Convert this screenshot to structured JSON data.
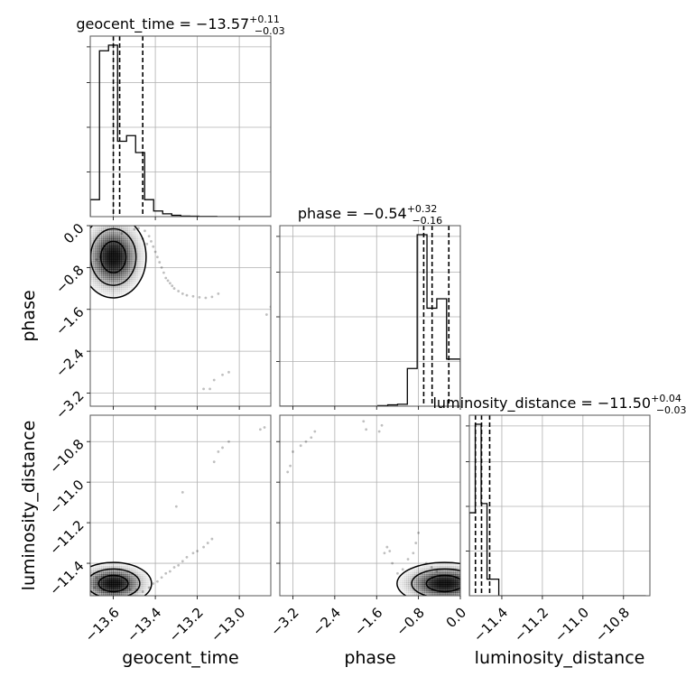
{
  "chart_data": {
    "type": "corner",
    "parameters": [
      "geocent_time",
      "phase",
      "luminosity_distance"
    ],
    "titles": [
      {
        "name": "geocent_time = −13.57",
        "sup": "+0.11",
        "sub": "−0.03"
      },
      {
        "name": "phase = −0.54",
        "sup": "+0.32",
        "sub": "−0.16"
      },
      {
        "name": "luminosity_distance = −11.50",
        "sup": "+0.04",
        "sub": "−0.03"
      }
    ],
    "axis_labels": {
      "x": [
        "geocent_time",
        "phase",
        "luminosity_distance"
      ],
      "y": [
        "",
        "phase",
        "luminosity_distance"
      ]
    },
    "ranges": {
      "geocent_time": [
        -13.71,
        -12.85
      ],
      "phase": [
        -3.45,
        0.0
      ],
      "luminosity_distance": [
        -11.56,
        -10.67
      ]
    },
    "ticks": {
      "geocent_time": [
        "−13.6",
        "−13.4",
        "−13.2",
        "−13.0"
      ],
      "phase": [
        "−3.2",
        "−2.4",
        "−1.6",
        "−0.8",
        "0.0"
      ],
      "luminosity_distance": [
        "−11.4",
        "−11.2",
        "−11.0",
        "−10.8"
      ]
    },
    "tick_values": {
      "geocent_time": [
        -13.6,
        -13.4,
        -13.2,
        -13.0
      ],
      "phase": [
        -3.2,
        -2.4,
        -1.6,
        -0.8,
        0.0
      ],
      "luminosity_distance": [
        -11.4,
        -11.2,
        -11.0,
        -10.8
      ]
    },
    "grid": true,
    "histograms": {
      "geocent_time": {
        "edges": [
          -13.71,
          -13.666,
          -13.623,
          -13.58,
          -13.537,
          -13.494,
          -13.451,
          -13.408,
          -13.365,
          -13.322,
          -13.279,
          -13.236,
          -13.193,
          -13.15,
          -13.107,
          -13.064,
          -13.021,
          -12.978,
          -12.935,
          -12.892,
          -12.85
        ],
        "counts": [
          0.09,
          0.88,
          0.91,
          0.4,
          0.43,
          0.34,
          0.09,
          0.03,
          0.015,
          0.007,
          0.003,
          0.002,
          0.001,
          0.001,
          0,
          0,
          0,
          0,
          0,
          0
        ],
        "quantiles": [
          -13.6,
          -13.57,
          -13.46
        ]
      },
      "phase": {
        "edges": [
          -3.45,
          -3.2625,
          -3.075,
          -2.8875,
          -2.7,
          -2.5125,
          -2.325,
          -2.1375,
          -1.95,
          -1.7625,
          -1.575,
          -1.3875,
          -1.2,
          -1.0125,
          -0.825,
          -0.6375,
          -0.45,
          -0.2625,
          -0.075,
          0.0
        ],
        "counts": [
          0,
          0,
          0,
          0,
          0,
          0,
          0,
          0,
          0,
          0,
          0.003,
          0.007,
          0.01,
          0.2,
          0.91,
          0.52,
          0.57,
          0.25,
          0.25
        ],
        "quantiles": [
          -0.7,
          -0.54,
          -0.22
        ]
      },
      "luminosity_distance": {
        "edges": [
          -11.56,
          -11.531,
          -11.502,
          -11.473,
          -11.444,
          -11.415,
          -11.386,
          -11.357,
          -11.328,
          -11.299,
          -11.27,
          -11.241,
          -11.212,
          -11.183,
          -11.154,
          -11.125,
          -11.096,
          -11.067,
          -11.038,
          -11.009,
          -10.98,
          -10.951,
          -10.922,
          -10.893,
          -10.864,
          -10.835,
          -10.806,
          -10.777,
          -10.748,
          -10.719,
          -10.69
        ],
        "counts": [
          0.45,
          0.93,
          0.5,
          0.09,
          0.09,
          0,
          0,
          0,
          0,
          0,
          0,
          0,
          0,
          0,
          0,
          0,
          0,
          0,
          0,
          0,
          0,
          0,
          0,
          0,
          0,
          0,
          0,
          0,
          0,
          0
        ],
        "quantiles": [
          -11.53,
          -11.5,
          -11.46
        ]
      }
    },
    "scatter": {
      "geocent_time_vs_phase": [
        [
          -13.48,
          -0.05
        ],
        [
          -13.45,
          -0.1
        ],
        [
          -13.43,
          -0.2
        ],
        [
          -13.42,
          -0.3
        ],
        [
          -13.41,
          -0.4
        ],
        [
          -13.4,
          -0.5
        ],
        [
          -13.39,
          -0.6
        ],
        [
          -13.38,
          -0.7
        ],
        [
          -13.37,
          -0.8
        ],
        [
          -13.36,
          -0.9
        ],
        [
          -13.35,
          -1.0
        ],
        [
          -13.34,
          -1.05
        ],
        [
          -13.33,
          -1.1
        ],
        [
          -13.32,
          -1.15
        ],
        [
          -13.31,
          -1.2
        ],
        [
          -13.29,
          -1.25
        ],
        [
          -13.27,
          -1.3
        ],
        [
          -13.25,
          -1.33
        ],
        [
          -13.22,
          -1.35
        ],
        [
          -13.19,
          -1.37
        ],
        [
          -13.16,
          -1.38
        ],
        [
          -13.13,
          -1.36
        ],
        [
          -13.1,
          -1.3
        ],
        [
          -13.68,
          -0.65
        ],
        [
          -13.66,
          -0.6
        ],
        [
          -13.64,
          -0.45
        ],
        [
          -13.56,
          -0.15
        ],
        [
          -13.5,
          -0.07
        ],
        [
          -13.46,
          -0.25
        ],
        [
          -13.44,
          -0.35
        ],
        [
          -12.85,
          -1.55
        ],
        [
          -12.87,
          -1.7
        ],
        [
          -13.12,
          -2.95
        ],
        [
          -13.08,
          -2.85
        ],
        [
          -13.05,
          -2.8
        ],
        [
          -13.14,
          -3.12
        ],
        [
          -13.17,
          -3.12
        ]
      ],
      "geocent_time_vs_luminosity_distance": [
        [
          -13.52,
          -11.53
        ],
        [
          -13.49,
          -11.53
        ],
        [
          -13.46,
          -11.54
        ],
        [
          -13.43,
          -11.52
        ],
        [
          -13.41,
          -11.5
        ],
        [
          -13.39,
          -11.49
        ],
        [
          -13.37,
          -11.47
        ],
        [
          -13.35,
          -11.45
        ],
        [
          -13.33,
          -11.44
        ],
        [
          -13.31,
          -11.42
        ],
        [
          -13.29,
          -11.41
        ],
        [
          -13.27,
          -11.39
        ],
        [
          -13.25,
          -11.37
        ],
        [
          -13.22,
          -11.35
        ],
        [
          -13.2,
          -11.34
        ],
        [
          -13.17,
          -11.32
        ],
        [
          -13.15,
          -11.3
        ],
        [
          -13.13,
          -11.28
        ],
        [
          -13.69,
          -11.52
        ],
        [
          -13.68,
          -11.47
        ],
        [
          -12.88,
          -10.73
        ],
        [
          -12.9,
          -10.74
        ],
        [
          -13.05,
          -10.8
        ],
        [
          -13.08,
          -10.83
        ],
        [
          -13.1,
          -10.85
        ],
        [
          -13.12,
          -10.9
        ],
        [
          -13.27,
          -11.05
        ],
        [
          -13.3,
          -11.12
        ]
      ],
      "phase_vs_luminosity_distance": [
        [
          -3.3,
          -10.95
        ],
        [
          -3.25,
          -10.92
        ],
        [
          -3.2,
          -10.85
        ],
        [
          -3.05,
          -10.82
        ],
        [
          -2.95,
          -10.8
        ],
        [
          -2.85,
          -10.78
        ],
        [
          -2.78,
          -10.75
        ],
        [
          -1.85,
          -10.7
        ],
        [
          -1.8,
          -10.74
        ],
        [
          -1.55,
          -10.75
        ],
        [
          -1.5,
          -10.72
        ],
        [
          -1.45,
          -11.35
        ],
        [
          -1.4,
          -11.32
        ],
        [
          -1.35,
          -11.34
        ],
        [
          -1.3,
          -11.4
        ],
        [
          -1.2,
          -11.45
        ],
        [
          -1.1,
          -11.43
        ],
        [
          -1.0,
          -11.38
        ],
        [
          -0.9,
          -11.35
        ],
        [
          -0.85,
          -11.3
        ],
        [
          -0.8,
          -11.25
        ],
        [
          -0.65,
          -11.4
        ],
        [
          -0.55,
          -11.42
        ],
        [
          -0.45,
          -11.44
        ]
      ]
    },
    "density": {
      "geocent_time_vs_phase": {
        "peak": [
          -13.6,
          -0.6
        ],
        "spread": [
          0.06,
          0.3
        ]
      },
      "geocent_time_vs_luminosity_distance": {
        "peak": [
          -13.6,
          -11.5
        ],
        "spread": [
          0.07,
          0.04
        ]
      },
      "phase_vs_luminosity_distance": {
        "peak": [
          -0.3,
          -11.5
        ],
        "spread": [
          0.35,
          0.04
        ]
      }
    }
  }
}
